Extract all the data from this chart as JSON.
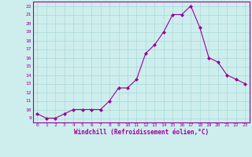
{
  "x": [
    0,
    1,
    2,
    3,
    4,
    5,
    6,
    7,
    8,
    9,
    10,
    11,
    12,
    13,
    14,
    15,
    16,
    17,
    18,
    19,
    20,
    21,
    22,
    23
  ],
  "y": [
    9.5,
    9.0,
    9.0,
    9.5,
    10.0,
    10.0,
    10.0,
    10.0,
    11.0,
    12.5,
    12.5,
    13.5,
    16.5,
    17.5,
    19.0,
    21.0,
    21.0,
    22.0,
    19.5,
    16.0,
    15.5,
    14.0,
    13.5,
    13.0
  ],
  "line_color": "#990099",
  "marker": "D",
  "marker_size": 2,
  "bg_color": "#cdeeed",
  "grid_color": "#aad8d8",
  "xlabel": "Windchill (Refroidissement éolien,°C)",
  "xlabel_color": "#990099",
  "tick_color": "#990099",
  "spine_color": "#990099",
  "ylim": [
    8.5,
    22.5
  ],
  "xlim": [
    -0.5,
    23.5
  ],
  "yticks": [
    9,
    10,
    11,
    12,
    13,
    14,
    15,
    16,
    17,
    18,
    19,
    20,
    21,
    22
  ],
  "xticks": [
    0,
    1,
    2,
    3,
    4,
    5,
    6,
    7,
    8,
    9,
    10,
    11,
    12,
    13,
    14,
    15,
    16,
    17,
    18,
    19,
    20,
    21,
    22,
    23
  ]
}
